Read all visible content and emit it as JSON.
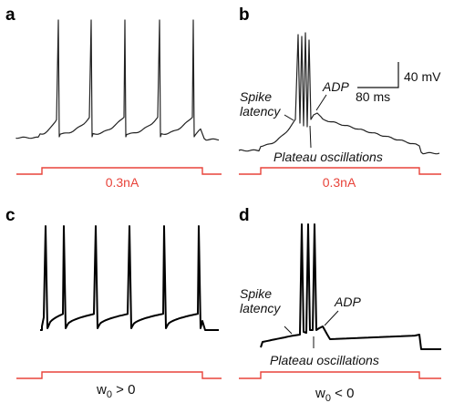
{
  "panels": {
    "a": {
      "letter": "a",
      "stimulus_label": "0.3nA"
    },
    "b": {
      "letter": "b",
      "stimulus_label": "0.3nA",
      "annotations": {
        "spike_latency_line1": "Spike",
        "spike_latency_line2": "latency",
        "adp": "ADP",
        "plateau": "Plateau oscillations"
      },
      "scale_bar": {
        "voltage": "40 mV",
        "time": "80 ms"
      }
    },
    "c": {
      "letter": "c",
      "condition": {
        "symbol": "w",
        "subscript": "0",
        "relation": " > 0"
      }
    },
    "d": {
      "letter": "d",
      "condition": {
        "symbol": "w",
        "subscript": "0",
        "relation": " < 0"
      },
      "annotations": {
        "spike_latency_line1": "Spike",
        "spike_latency_line2": "latency",
        "adp": "ADP",
        "plateau": "Plateau oscillations"
      }
    }
  },
  "colors": {
    "stimulus": "#e8433a",
    "trace": "#000000"
  }
}
